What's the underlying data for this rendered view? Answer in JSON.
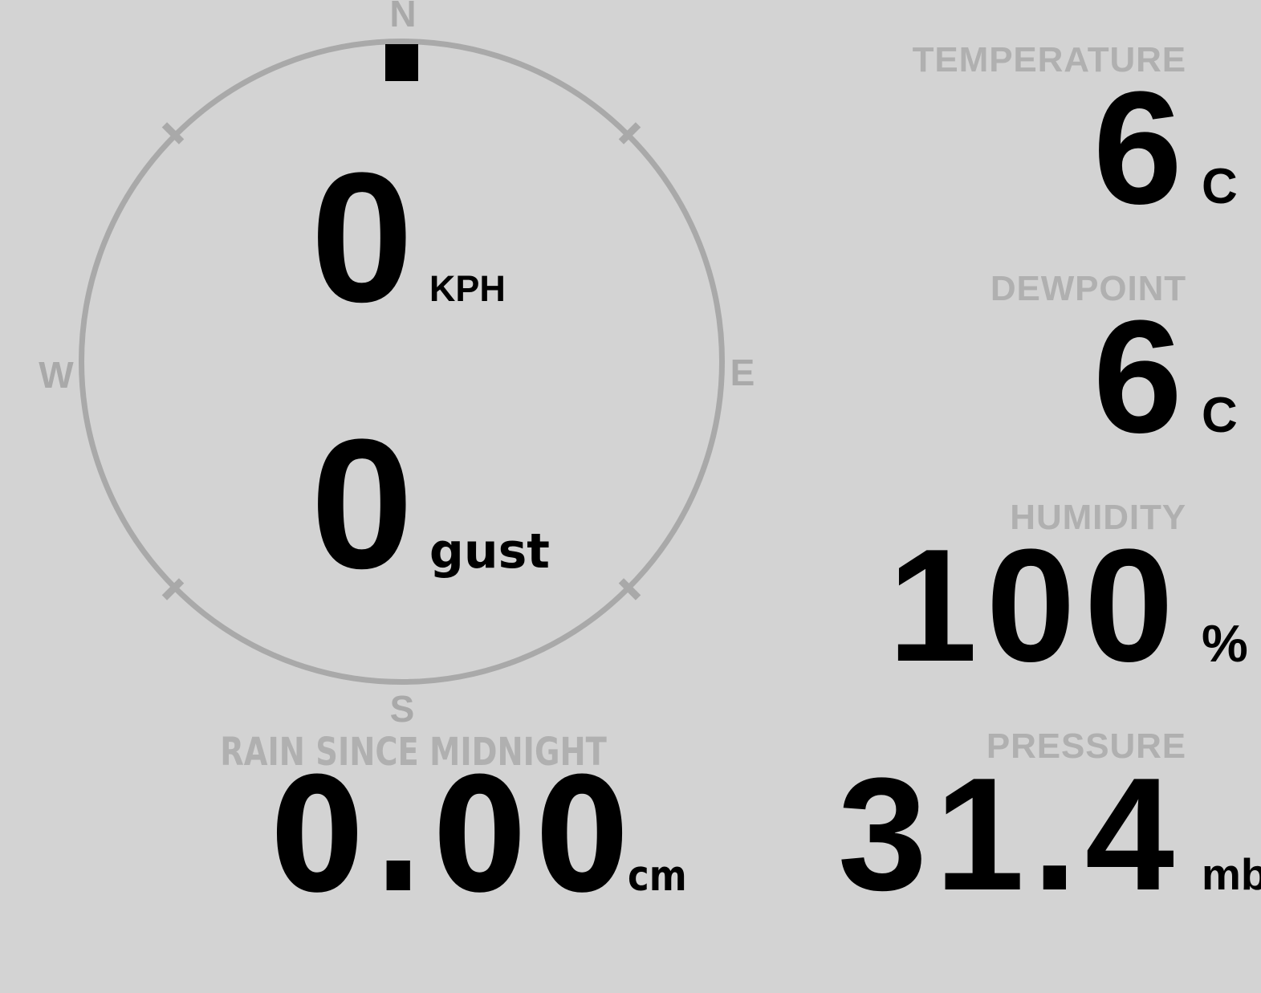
{
  "wind_gauge": {
    "cardinals": {
      "n": "N",
      "e": "E",
      "s": "S",
      "w": "W"
    },
    "speed": {
      "value": "0",
      "unit": "KPH"
    },
    "gust": {
      "value": "0",
      "unit": "gust"
    },
    "direction_marker": "north"
  },
  "stats": {
    "temperature": {
      "label": "TEMPERATURE",
      "value": "6",
      "unit": "C"
    },
    "dewpoint": {
      "label": "DEWPOINT",
      "value": "6",
      "unit": "C"
    },
    "humidity": {
      "label": "HUMIDITY",
      "value": "100",
      "unit": "%"
    },
    "pressure": {
      "label": "PRESSURE",
      "value": "31.4",
      "unit": "mb"
    }
  },
  "rain": {
    "label": "RAIN SINCE MIDNIGHT",
    "value": "0.00",
    "unit": "cm"
  },
  "colors": {
    "background": "#d3d3d3",
    "muted_text": "#b0b0b0",
    "ring": "#a9a9a9",
    "value_text": "#000000"
  }
}
